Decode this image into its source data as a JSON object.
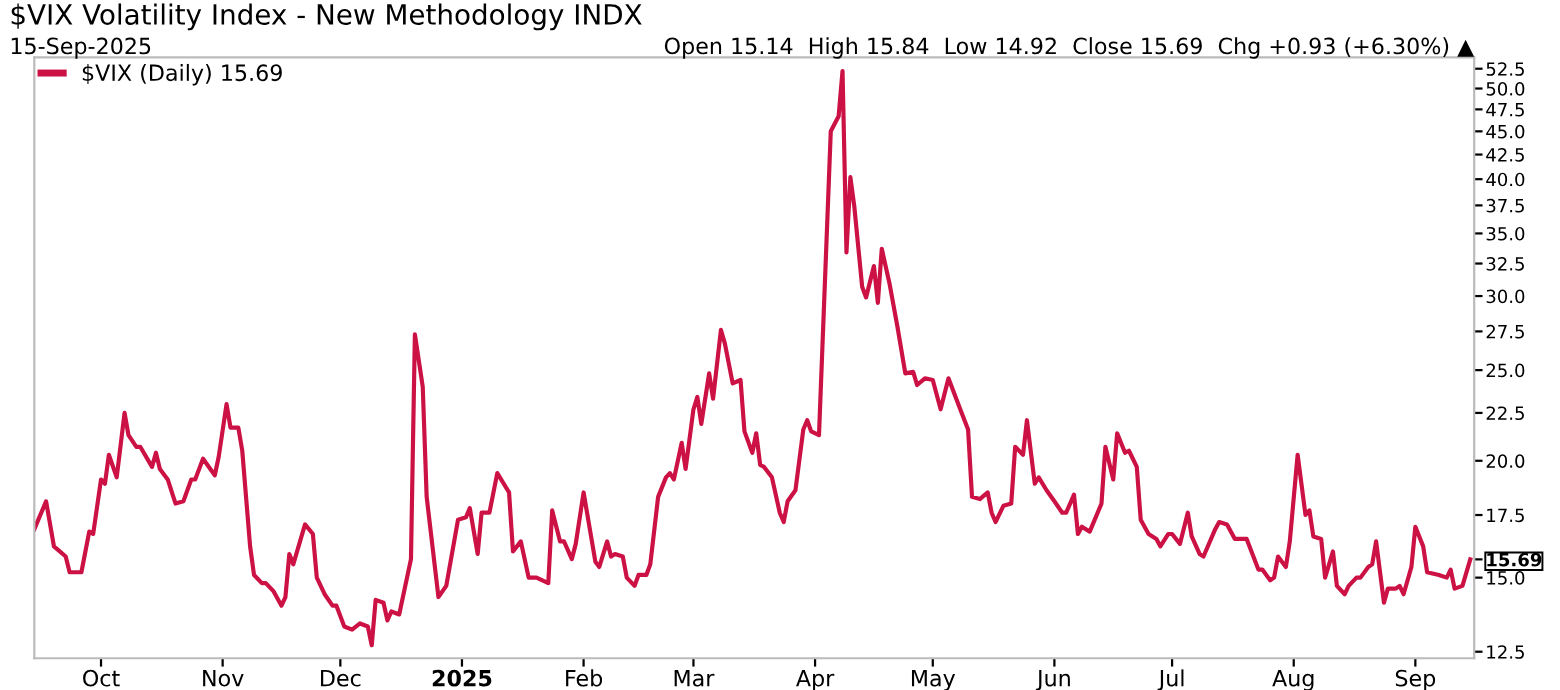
{
  "chart_data": {
    "type": "line",
    "title": "$VIX Volatility Index - New Methodology INDX",
    "subtitle": "15-Sep-2025",
    "annotations": [
      "Open 15.14  High 15.84  Low 14.92  Close 15.69  Chg +0.93 (+6.30%) ▲"
    ],
    "x": [
      "2024-09-14",
      "2024-09-17",
      "2024-09-19",
      "2024-09-22",
      "2024-09-23",
      "2024-09-26",
      "2024-09-28",
      "2024-09-29",
      "2024-10-01",
      "2024-10-02",
      "2024-10-03",
      "2024-10-05",
      "2024-10-07",
      "2024-10-08",
      "2024-10-10",
      "2024-10-11",
      "2024-10-14",
      "2024-10-15",
      "2024-10-16",
      "2024-10-18",
      "2024-10-20",
      "2024-10-22",
      "2024-10-24",
      "2024-10-25",
      "2024-10-27",
      "2024-10-30",
      "2024-10-31",
      "2024-11-02",
      "2024-11-03",
      "2024-11-05",
      "2024-11-06",
      "2024-11-08",
      "2024-11-09",
      "2024-11-11",
      "2024-11-12",
      "2024-11-14",
      "2024-11-16",
      "2024-11-17",
      "2024-11-18",
      "2024-11-19",
      "2024-11-22",
      "2024-11-24",
      "2024-11-25",
      "2024-11-27",
      "2024-11-29",
      "2024-11-30",
      "2024-12-02",
      "2024-12-04",
      "2024-12-06",
      "2024-12-08",
      "2024-12-09",
      "2024-12-10",
      "2024-12-12",
      "2024-12-13",
      "2024-12-14",
      "2024-12-16",
      "2024-12-19",
      "2024-12-20",
      "2024-12-22",
      "2024-12-23",
      "2024-12-26",
      "2024-12-28",
      "2024-12-31",
      "2025-01-02",
      "2025-01-03",
      "2025-01-05",
      "2025-01-06",
      "2025-01-08",
      "2025-01-10",
      "2025-01-13",
      "2025-01-14",
      "2025-01-16",
      "2025-01-18",
      "2025-01-20",
      "2025-01-23",
      "2025-01-24",
      "2025-01-26",
      "2025-01-27",
      "2025-01-29",
      "2025-01-30",
      "2025-02-01",
      "2025-02-04",
      "2025-02-05",
      "2025-02-07",
      "2025-02-08",
      "2025-02-09",
      "2025-02-11",
      "2025-02-12",
      "2025-02-14",
      "2025-02-15",
      "2025-02-17",
      "2025-02-18",
      "2025-02-20",
      "2025-02-22",
      "2025-02-23",
      "2025-02-24",
      "2025-02-26",
      "2025-02-27",
      "2025-03-01",
      "2025-03-02",
      "2025-03-03",
      "2025-03-05",
      "2025-03-06",
      "2025-03-08",
      "2025-03-09",
      "2025-03-11",
      "2025-03-13",
      "2025-03-14",
      "2025-03-16",
      "2025-03-17",
      "2025-03-18",
      "2025-03-19",
      "2025-03-21",
      "2025-03-23",
      "2025-03-24",
      "2025-03-25",
      "2025-03-27",
      "2025-03-29",
      "2025-03-30",
      "2025-03-31",
      "2025-04-02",
      "2025-04-05",
      "2025-04-07",
      "2025-04-08",
      "2025-04-09",
      "2025-04-10",
      "2025-04-11",
      "2025-04-13",
      "2025-04-14",
      "2025-04-16",
      "2025-04-17",
      "2025-04-18",
      "2025-04-20",
      "2025-04-22",
      "2025-04-24",
      "2025-04-26",
      "2025-04-27",
      "2025-04-29",
      "2025-05-01",
      "2025-05-03",
      "2025-05-05",
      "2025-05-08",
      "2025-05-10",
      "2025-05-11",
      "2025-05-13",
      "2025-05-15",
      "2025-05-16",
      "2025-05-17",
      "2025-05-19",
      "2025-05-21",
      "2025-05-22",
      "2025-05-24",
      "2025-05-25",
      "2025-05-27",
      "2025-05-28",
      "2025-05-30",
      "2025-06-01",
      "2025-06-03",
      "2025-06-04",
      "2025-06-06",
      "2025-06-07",
      "2025-06-08",
      "2025-06-10",
      "2025-06-13",
      "2025-06-14",
      "2025-06-16",
      "2025-06-17",
      "2025-06-19",
      "2025-06-20",
      "2025-06-22",
      "2025-06-23",
      "2025-06-25",
      "2025-06-27",
      "2025-06-28",
      "2025-06-30",
      "2025-07-01",
      "2025-07-03",
      "2025-07-05",
      "2025-07-06",
      "2025-07-08",
      "2025-07-09",
      "2025-07-12",
      "2025-07-13",
      "2025-07-15",
      "2025-07-17",
      "2025-07-19",
      "2025-07-20",
      "2025-07-23",
      "2025-07-24",
      "2025-07-26",
      "2025-07-27",
      "2025-07-28",
      "2025-07-30",
      "2025-07-31",
      "2025-08-02",
      "2025-08-04",
      "2025-08-05",
      "2025-08-06",
      "2025-08-08",
      "2025-08-09",
      "2025-08-11",
      "2025-08-12",
      "2025-08-14",
      "2025-08-15",
      "2025-08-17",
      "2025-08-18",
      "2025-08-20",
      "2025-08-21",
      "2025-08-22",
      "2025-08-24",
      "2025-08-25",
      "2025-08-27",
      "2025-08-28",
      "2025-08-29",
      "2025-08-31",
      "2025-09-01",
      "2025-09-03",
      "2025-09-04",
      "2025-09-07",
      "2025-09-09",
      "2025-09-10",
      "2025-09-11",
      "2025-09-13",
      "2025-09-15"
    ],
    "series": [
      {
        "name": "$VIX (Daily) 15.69",
        "color": "#cc1144",
        "values": [
          16.9,
          18.1,
          16.2,
          15.8,
          15.2,
          15.2,
          16.8,
          16.7,
          19.1,
          18.9,
          20.3,
          19.2,
          22.5,
          21.3,
          20.7,
          20.7,
          19.7,
          20.4,
          19.6,
          19.1,
          18.0,
          18.1,
          19.1,
          19.1,
          20.1,
          19.3,
          20.2,
          23.0,
          21.7,
          21.7,
          20.5,
          16.2,
          15.1,
          14.8,
          14.8,
          14.5,
          14.0,
          14.3,
          15.9,
          15.5,
          17.1,
          16.7,
          15.0,
          14.4,
          14.0,
          14.0,
          13.3,
          13.2,
          13.4,
          13.3,
          12.7,
          14.2,
          14.1,
          13.5,
          13.8,
          13.7,
          15.7,
          27.3,
          24.0,
          18.3,
          14.3,
          14.7,
          17.3,
          17.4,
          17.8,
          15.9,
          17.6,
          17.6,
          19.4,
          18.5,
          16.0,
          16.4,
          15.0,
          15.0,
          14.8,
          17.7,
          16.4,
          16.4,
          15.7,
          16.3,
          18.5,
          15.6,
          15.4,
          16.4,
          15.8,
          15.9,
          15.8,
          15.0,
          14.7,
          15.1,
          15.1,
          15.5,
          18.3,
          19.2,
          19.4,
          19.1,
          20.9,
          19.6,
          22.7,
          23.4,
          21.9,
          24.8,
          23.3,
          27.6,
          26.7,
          24.2,
          24.4,
          21.5,
          20.4,
          21.4,
          19.8,
          19.7,
          19.2,
          17.6,
          17.2,
          18.1,
          18.6,
          21.6,
          22.1,
          21.5,
          21.3,
          45.0,
          46.7,
          52.2,
          33.4,
          40.2,
          37.4,
          30.7,
          29.9,
          32.3,
          29.5,
          33.7,
          30.9,
          27.8,
          24.8,
          24.9,
          24.1,
          24.5,
          24.4,
          22.7,
          24.5,
          22.7,
          21.6,
          18.3,
          18.2,
          18.5,
          17.6,
          17.2,
          17.9,
          18.0,
          20.7,
          20.3,
          22.1,
          18.9,
          19.2,
          18.6,
          18.1,
          17.6,
          17.6,
          18.4,
          16.7,
          17.0,
          16.8,
          18.0,
          20.7,
          19.1,
          21.4,
          20.4,
          20.5,
          19.7,
          17.3,
          16.7,
          16.5,
          16.2,
          16.7,
          16.7,
          16.3,
          17.6,
          16.6,
          15.9,
          15.8,
          16.9,
          17.2,
          17.1,
          16.5,
          16.5,
          16.5,
          15.3,
          15.3,
          14.9,
          15.0,
          15.8,
          15.4,
          16.4,
          20.3,
          17.5,
          17.7,
          16.6,
          16.5,
          15.0,
          16.0,
          14.7,
          14.4,
          14.7,
          15.0,
          15.0,
          15.4,
          15.5,
          16.4,
          14.1,
          14.6,
          14.6,
          14.7,
          14.4,
          15.4,
          17.0,
          16.2,
          15.2,
          15.1,
          15.0,
          15.3,
          14.6,
          14.7,
          15.69
        ]
      }
    ],
    "log": true,
    "ylim": [
      12.3,
      54.0
    ],
    "yticks": [
      12.5,
      {
        "value": 15,
        "label": "15.0"
      },
      15.69,
      17.5,
      {
        "value": 20,
        "label": "20.0"
      },
      22.5,
      {
        "value": 25,
        "label": "25.0"
      },
      27.5,
      {
        "value": 30,
        "label": "30.0"
      },
      32.5,
      {
        "value": 35,
        "label": "35.0"
      },
      37.5,
      {
        "value": 40,
        "label": "40.0"
      },
      42.5,
      {
        "value": 45,
        "label": "45.0"
      },
      47.5,
      {
        "value": 50,
        "label": "50.0"
      },
      52.5
    ],
    "xlim": [
      "2024-09-14",
      "2025-09-16"
    ],
    "xticks": [
      {
        "value": "2024-10-01",
        "label": "Oct"
      },
      {
        "value": "2024-11-01",
        "label": "Nov"
      },
      {
        "value": "2024-12-01",
        "label": "Dec"
      },
      {
        "value": "2025-01-01",
        "label": "2025"
      },
      {
        "value": "2025-02-01",
        "label": "Feb"
      },
      {
        "value": "2025-03-01",
        "label": "Mar"
      },
      {
        "value": "2025-04-01",
        "label": "Apr"
      },
      {
        "value": "2025-05-01",
        "label": "May"
      },
      {
        "value": "2025-06-01",
        "label": "Jun"
      },
      {
        "value": "2025-07-01",
        "label": "Jul"
      },
      {
        "value": "2025-08-01",
        "label": "Aug"
      },
      {
        "value": "2025-09-01",
        "label": "Sep"
      }
    ],
    "grid": false,
    "legend": "top left",
    "line_style": "solid",
    "marker": "none"
  }
}
